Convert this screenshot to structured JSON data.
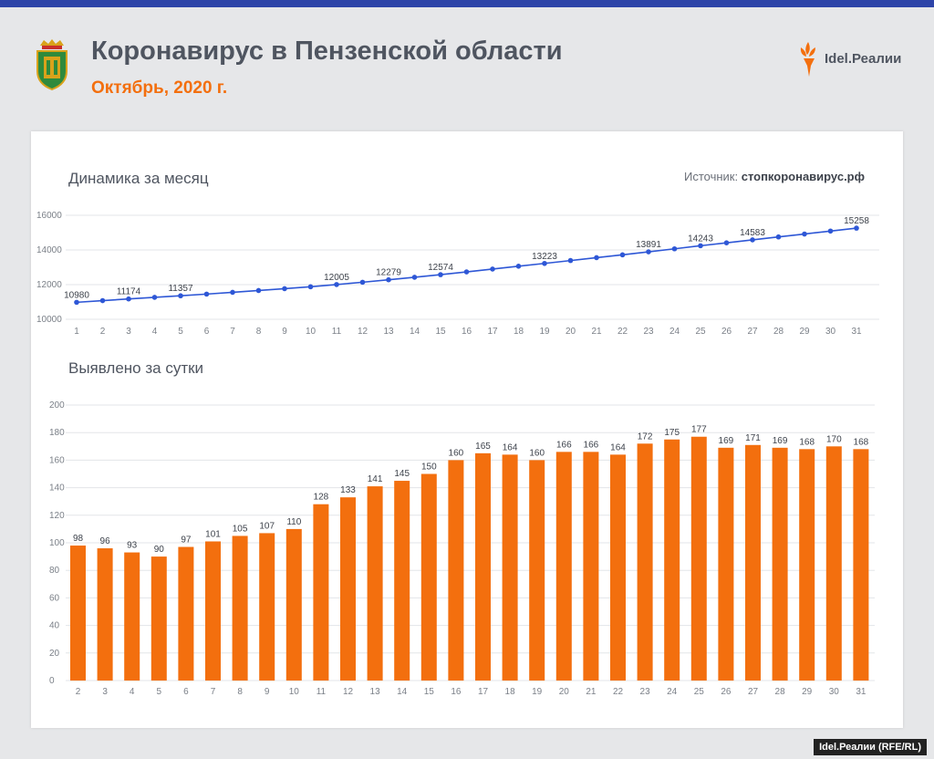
{
  "header": {
    "title": "Коронавирус в Пензенской области",
    "subtitle": "Октябрь, 2020 г.",
    "brand": "Idel.Реалии",
    "emblem_icon": "penza-coat-of-arms-icon",
    "brand_icon": "torch-icon"
  },
  "colors": {
    "accent": "#f36f0e",
    "line": "#2e57d6",
    "text": "#4f5560",
    "topbar": "#2d44a8"
  },
  "source": {
    "label": "Источник:",
    "value": "стопкоронавирус.рф"
  },
  "footer": "Idel.Реалии (RFE/RL)",
  "chart_data": [
    {
      "type": "line",
      "title": "Динамика за месяц",
      "x": [
        1,
        2,
        3,
        4,
        5,
        6,
        7,
        8,
        9,
        10,
        11,
        12,
        13,
        14,
        15,
        16,
        17,
        18,
        19,
        20,
        21,
        22,
        23,
        24,
        25,
        26,
        27,
        28,
        29,
        30,
        31
      ],
      "series": [
        {
          "values": [
            10980,
            11078,
            11174,
            11267,
            11357,
            11454,
            11555,
            11660,
            11767,
            11877,
            12005,
            12138,
            12279,
            12424,
            12574,
            12734,
            12899,
            13063,
            13223,
            13389,
            13555,
            13719,
            13891,
            14066,
            14243,
            14412,
            14583,
            14752,
            14920,
            15090,
            15258
          ]
        }
      ],
      "labeled_x": [
        1,
        3,
        5,
        11,
        13,
        15,
        19,
        23,
        25,
        27,
        31
      ],
      "ylim": [
        10000,
        16000
      ],
      "yticks": [
        10000,
        12000,
        14000,
        16000
      ],
      "grid": true
    },
    {
      "type": "bar",
      "title": "Выявлено за сутки",
      "categories": [
        "2",
        "3",
        "4",
        "5",
        "6",
        "7",
        "8",
        "9",
        "10",
        "11",
        "12",
        "13",
        "14",
        "15",
        "16",
        "17",
        "18",
        "19",
        "20",
        "21",
        "22",
        "23",
        "24",
        "25",
        "26",
        "27",
        "28",
        "29",
        "30",
        "31"
      ],
      "values": [
        98,
        96,
        93,
        90,
        97,
        101,
        105,
        107,
        110,
        128,
        133,
        141,
        145,
        150,
        160,
        165,
        164,
        160,
        166,
        166,
        164,
        172,
        175,
        177,
        169,
        171,
        169,
        168,
        170,
        168
      ],
      "ylim": [
        0,
        200
      ],
      "yticks": [
        0,
        20,
        40,
        60,
        80,
        100,
        120,
        140,
        160,
        180,
        200
      ],
      "grid": true
    }
  ]
}
